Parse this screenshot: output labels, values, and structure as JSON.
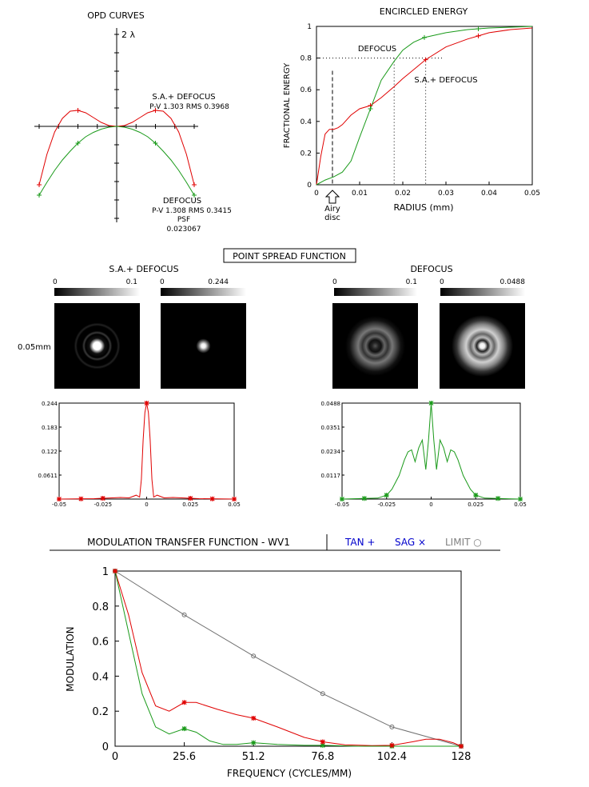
{
  "colors": {
    "red": "#e00000",
    "green": "#1a9a1a",
    "gray": "#707070",
    "blue": "#0000cc",
    "axis": "#000000"
  },
  "opd": {
    "title": "OPD CURVES",
    "scale_label": "2 λ",
    "sa_label": "S.A.+ DEFOCUS",
    "sa_stats": "P-V 1.303 RMS 0.3968",
    "defocus_label": "DEFOCUS",
    "defocus_stats": "P-V 1.308 RMS 0.3415",
    "psf_label": "PSF",
    "psf_value": "0.023067"
  },
  "encircled": {
    "title": "ENCIRCLED ENERGY",
    "ylabel": "FRACTIONAL ENERGY",
    "xlabel": "RADIUS (mm)",
    "airy_label_1": "Airy",
    "airy_label_2": "disc",
    "defocus_label": "DEFOCUS",
    "sa_label": "S.A.+ DEFOCUS",
    "x_ticks": [
      "0",
      "0.01",
      "0.02",
      "0.03",
      "0.04",
      "0.05"
    ],
    "y_ticks": [
      "0",
      "0.2",
      "0.4",
      "0.6",
      "0.8",
      "1"
    ]
  },
  "psf": {
    "title": "POINT SPREAD FUNCTION",
    "left_group": "S.A.+ DEFOCUS",
    "right_group": "DEFOCUS",
    "scale_label": "0.05mm",
    "bars": [
      {
        "min": "0",
        "max": "0.1"
      },
      {
        "min": "0",
        "max": "0.244"
      },
      {
        "min": "0",
        "max": "0.1"
      },
      {
        "min": "0",
        "max": "0.0488"
      }
    ],
    "left_profile": {
      "y_ticks": [
        "0.244",
        "0.183",
        "0.122",
        "0.0611"
      ],
      "x_ticks": [
        "-0.05",
        "-0.025",
        "0",
        "0.025",
        "0.05"
      ]
    },
    "right_profile": {
      "y_ticks": [
        "0.0488",
        "0.0351",
        "0.0234",
        "0.0117"
      ],
      "x_ticks": [
        "-0.05",
        "-0.025",
        "0",
        "0.025",
        "0.05"
      ]
    }
  },
  "mtf": {
    "title": "MODULATION TRANSFER FUNCTION - WV1",
    "tan_label": "TAN +",
    "sag_label": "SAG ×",
    "limit_label": "LIMIT ○",
    "xlabel": "FREQUENCY (CYCLES/MM)",
    "ylabel": "MODULATION",
    "x_ticks": [
      "0",
      "25.6",
      "51.2",
      "76.8",
      "102.4",
      "128"
    ],
    "y_ticks": [
      "0",
      "0.2",
      "0.4",
      "0.6",
      "0.8",
      "1"
    ]
  },
  "chart_data": [
    {
      "type": "line",
      "title": "OPD CURVES",
      "series": [
        {
          "name": "S.A.+ DEFOCUS",
          "color": "red",
          "x": [
            -1,
            -0.9,
            -0.8,
            -0.7,
            -0.6,
            -0.5,
            -0.4,
            -0.3,
            -0.2,
            -0.1,
            0,
            0.1,
            0.2,
            0.3,
            0.4,
            0.5,
            0.6,
            0.7,
            0.8,
            0.9,
            1
          ],
          "y": [
            -0.73,
            -0.35,
            -0.07,
            0.1,
            0.19,
            0.2,
            0.17,
            0.11,
            0.05,
            0.01,
            0,
            0.01,
            0.05,
            0.11,
            0.17,
            0.2,
            0.19,
            0.1,
            -0.07,
            -0.35,
            -0.73
          ]
        },
        {
          "name": "DEFOCUS",
          "color": "green",
          "x": [
            -1,
            -0.9,
            -0.8,
            -0.7,
            -0.6,
            -0.5,
            -0.4,
            -0.3,
            -0.2,
            -0.1,
            0,
            0.1,
            0.2,
            0.3,
            0.4,
            0.5,
            0.6,
            0.7,
            0.8,
            0.9,
            1
          ],
          "y": [
            -0.86,
            -0.7,
            -0.55,
            -0.42,
            -0.31,
            -0.21,
            -0.13,
            -0.075,
            -0.035,
            -0.01,
            0,
            -0.01,
            -0.035,
            -0.075,
            -0.13,
            -0.21,
            -0.31,
            -0.42,
            -0.55,
            -0.7,
            -0.86
          ]
        }
      ]
    },
    {
      "type": "line",
      "title": "ENCIRCLED ENERGY",
      "xlabel": "RADIUS (mm)",
      "ylabel": "FRACTIONAL ENERGY",
      "xlim": [
        0,
        0.05
      ],
      "ylim": [
        0,
        1
      ],
      "annotations": {
        "airy_disc_radius": 0.0037,
        "reference_level": 0.8,
        "defocus_at_0.8": 0.018,
        "sa_at_0.8": 0.0253
      },
      "series": [
        {
          "name": "S.A.+ DEFOCUS",
          "color": "red",
          "x": [
            0,
            0.001,
            0.002,
            0.003,
            0.004,
            0.005,
            0.006,
            0.008,
            0.01,
            0.0125,
            0.015,
            0.018,
            0.02,
            0.0253,
            0.03,
            0.035,
            0.0375,
            0.04,
            0.045,
            0.05
          ],
          "y": [
            0,
            0.18,
            0.32,
            0.35,
            0.35,
            0.36,
            0.38,
            0.44,
            0.48,
            0.5,
            0.55,
            0.62,
            0.67,
            0.79,
            0.87,
            0.92,
            0.94,
            0.96,
            0.98,
            0.99
          ]
        },
        {
          "name": "DEFOCUS",
          "color": "green",
          "x": [
            0,
            0.002,
            0.004,
            0.006,
            0.008,
            0.01,
            0.0125,
            0.015,
            0.018,
            0.02,
            0.0225,
            0.025,
            0.03,
            0.035,
            0.04,
            0.045,
            0.05
          ],
          "y": [
            0,
            0.03,
            0.05,
            0.08,
            0.15,
            0.3,
            0.48,
            0.66,
            0.78,
            0.85,
            0.9,
            0.93,
            0.96,
            0.98,
            0.99,
            0.995,
            1
          ]
        }
      ]
    },
    {
      "type": "line",
      "title": "PSF profile S.A.+ DEFOCUS",
      "xlim": [
        -0.05,
        0.05
      ],
      "ylim": [
        0,
        0.244
      ],
      "series": [
        {
          "name": "S.A.+ DEFOCUS",
          "color": "red",
          "x": [
            -0.05,
            -0.03,
            -0.015,
            -0.01,
            -0.006,
            -0.004,
            -0.003,
            -0.002,
            -0.001,
            0,
            0.001,
            0.002,
            0.003,
            0.004,
            0.006,
            0.01,
            0.015,
            0.03,
            0.05
          ],
          "y": [
            0,
            0.001,
            0.004,
            0.003,
            0.01,
            0.005,
            0.05,
            0.15,
            0.22,
            0.244,
            0.22,
            0.15,
            0.05,
            0.005,
            0.01,
            0.003,
            0.004,
            0.001,
            0
          ]
        }
      ]
    },
    {
      "type": "line",
      "title": "PSF profile DEFOCUS",
      "xlim": [
        -0.05,
        0.05
      ],
      "ylim": [
        0,
        0.0488
      ],
      "series": [
        {
          "name": "DEFOCUS",
          "color": "green",
          "x": [
            -0.05,
            -0.03,
            -0.025,
            -0.022,
            -0.018,
            -0.015,
            -0.013,
            -0.011,
            -0.009,
            -0.007,
            -0.005,
            -0.003,
            -0.0015,
            0,
            0.0015,
            0.003,
            0.005,
            0.007,
            0.009,
            0.011,
            0.013,
            0.015,
            0.018,
            0.022,
            0.025,
            0.03,
            0.05
          ],
          "y": [
            0,
            0.0005,
            0.002,
            0.005,
            0.012,
            0.02,
            0.024,
            0.025,
            0.019,
            0.026,
            0.03,
            0.015,
            0.03,
            0.0488,
            0.03,
            0.015,
            0.03,
            0.026,
            0.019,
            0.025,
            0.024,
            0.02,
            0.012,
            0.005,
            0.002,
            0.0005,
            0
          ]
        }
      ]
    },
    {
      "type": "line",
      "title": "MODULATION TRANSFER FUNCTION - WV1",
      "xlabel": "FREQUENCY (CYCLES/MM)",
      "ylabel": "MODULATION",
      "xlim": [
        0,
        128
      ],
      "ylim": [
        0,
        1
      ],
      "series": [
        {
          "name": "S.A.+ DEFOCUS",
          "color": "red",
          "x": [
            0,
            5,
            10,
            15,
            20,
            25.6,
            30,
            38,
            45,
            51.2,
            60,
            70,
            76.8,
            85,
            95,
            102.4,
            110,
            115,
            120,
            125,
            128
          ],
          "y": [
            1,
            0.75,
            0.42,
            0.23,
            0.2,
            0.25,
            0.25,
            0.21,
            0.18,
            0.16,
            0.11,
            0.05,
            0.025,
            0.008,
            0.003,
            0.005,
            0.025,
            0.04,
            0.04,
            0.02,
            0
          ]
        },
        {
          "name": "DEFOCUS",
          "color": "green",
          "x": [
            0,
            5,
            10,
            15,
            20,
            25.6,
            30,
            35,
            40,
            45,
            51.2,
            60,
            70,
            76.8,
            90,
            102.4,
            115,
            128
          ],
          "y": [
            1,
            0.65,
            0.3,
            0.11,
            0.07,
            0.1,
            0.08,
            0.03,
            0.01,
            0.01,
            0.02,
            0.01,
            0.005,
            0.005,
            0,
            0,
            0,
            0
          ]
        },
        {
          "name": "LIMIT",
          "color": "gray",
          "x": [
            0,
            25.6,
            51.2,
            76.8,
            102.4,
            128
          ],
          "y": [
            1,
            0.75,
            0.515,
            0.3,
            0.11,
            0
          ]
        }
      ]
    }
  ]
}
